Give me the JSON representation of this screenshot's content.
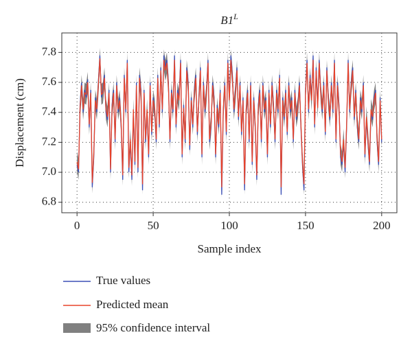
{
  "chart_data": {
    "type": "line",
    "title": "B1",
    "title_superscript": "L",
    "xlabel": "Sample index",
    "ylabel": "Displacement (cm)",
    "xlim": [
      -10,
      210
    ],
    "ylim": [
      6.73,
      7.93
    ],
    "xticks": [
      0,
      50,
      100,
      150,
      200
    ],
    "yticks": [
      {
        "value": 6.8,
        "label": "6.8"
      },
      {
        "value": 7.0,
        "label": "7.0"
      },
      {
        "value": 7.2,
        "label": "7.2"
      },
      {
        "value": 7.4,
        "label": "7.4"
      },
      {
        "value": 7.6,
        "label": "7.6"
      },
      {
        "value": 7.8,
        "label": "7.8"
      }
    ],
    "grid": true,
    "legend": "bottom",
    "x": [
      0,
      1,
      2,
      3,
      4,
      5,
      6,
      7,
      8,
      9,
      10,
      11,
      12,
      13,
      14,
      15,
      16,
      17,
      18,
      19,
      20,
      21,
      22,
      23,
      24,
      25,
      26,
      27,
      28,
      29,
      30,
      31,
      32,
      33,
      34,
      35,
      36,
      37,
      38,
      39,
      40,
      41,
      42,
      43,
      44,
      45,
      46,
      47,
      48,
      49,
      50,
      51,
      52,
      53,
      54,
      55,
      56,
      57,
      58,
      59,
      60,
      61,
      62,
      63,
      64,
      65,
      66,
      67,
      68,
      69,
      70,
      71,
      72,
      73,
      74,
      75,
      76,
      77,
      78,
      79,
      80,
      81,
      82,
      83,
      84,
      85,
      86,
      87,
      88,
      89,
      90,
      91,
      92,
      93,
      94,
      95,
      96,
      97,
      98,
      99,
      100,
      101,
      102,
      103,
      104,
      105,
      106,
      107,
      108,
      109,
      110,
      111,
      112,
      113,
      114,
      115,
      116,
      117,
      118,
      119,
      120,
      121,
      122,
      123,
      124,
      125,
      126,
      127,
      128,
      129,
      130,
      131,
      132,
      133,
      134,
      135,
      136,
      137,
      138,
      139,
      140,
      141,
      142,
      143,
      144,
      145,
      146,
      147,
      148,
      149,
      150,
      151,
      152,
      153,
      154,
      155,
      156,
      157,
      158,
      159,
      160,
      161,
      162,
      163,
      164,
      165,
      166,
      167,
      168,
      169,
      170,
      171,
      172,
      173,
      174,
      175,
      176,
      177,
      178,
      179,
      180,
      181,
      182,
      183,
      184,
      185,
      186,
      187,
      188,
      189,
      190,
      191,
      192,
      193,
      194,
      195,
      196,
      197,
      198,
      199,
      200
    ],
    "confidence": {
      "name": "95% confidence interval",
      "color": "#808080",
      "halfwidth": 0.07
    },
    "series": [
      {
        "name": "True values",
        "color": "#3b4fb5",
        "values": [
          7.05,
          7.0,
          7.45,
          7.6,
          7.4,
          7.55,
          7.5,
          7.62,
          7.3,
          7.55,
          6.9,
          7.1,
          7.5,
          7.4,
          7.6,
          7.78,
          7.5,
          7.55,
          7.65,
          7.4,
          7.35,
          7.55,
          7.0,
          7.45,
          7.55,
          7.2,
          7.6,
          7.4,
          7.5,
          7.3,
          6.95,
          7.65,
          7.4,
          7.75,
          7.0,
          7.2,
          6.95,
          7.4,
          7.05,
          7.6,
          7.0,
          7.65,
          7.55,
          6.88,
          7.55,
          7.2,
          7.4,
          7.1,
          7.6,
          7.25,
          7.5,
          7.4,
          7.2,
          7.65,
          7.3,
          7.7,
          7.4,
          7.78,
          7.7,
          7.75,
          7.6,
          7.2,
          7.55,
          7.4,
          7.78,
          7.3,
          7.55,
          7.5,
          7.75,
          7.1,
          7.45,
          7.2,
          7.7,
          7.6,
          7.15,
          7.5,
          7.3,
          7.55,
          7.65,
          7.25,
          7.5,
          7.7,
          7.1,
          7.6,
          7.4,
          7.55,
          7.75,
          7.2,
          7.3,
          7.6,
          7.5,
          7.1,
          7.45,
          7.3,
          7.55,
          6.85,
          7.4,
          7.6,
          7.25,
          7.75,
          7.5,
          7.78,
          7.65,
          7.4,
          7.55,
          7.7,
          7.35,
          7.6,
          7.25,
          7.5,
          6.88,
          7.4,
          7.55,
          7.2,
          7.6,
          7.05,
          7.5,
          7.3,
          6.95,
          7.45,
          7.55,
          7.2,
          7.6,
          7.4,
          7.5,
          7.1,
          7.55,
          7.3,
          7.6,
          7.45,
          7.2,
          7.55,
          7.4,
          7.65,
          6.85,
          7.5,
          7.35,
          7.55,
          7.25,
          7.6,
          7.4,
          7.5,
          7.2,
          7.55,
          7.35,
          7.45,
          7.6,
          7.3,
          7.05,
          6.88,
          7.55,
          7.75,
          7.4,
          7.65,
          7.5,
          7.78,
          7.3,
          7.7,
          7.45,
          7.75,
          7.55,
          7.4,
          7.6,
          7.25,
          7.7,
          7.5,
          7.35,
          7.6,
          7.4,
          7.75,
          7.2,
          7.6,
          7.45,
          7.1,
          7.05,
          7.2,
          7.0,
          7.3,
          7.75,
          7.4,
          7.6,
          7.7,
          7.35,
          7.55,
          7.3,
          7.2,
          7.5,
          7.4,
          7.6,
          7.1,
          7.35,
          7.2,
          7.05,
          7.4,
          7.35,
          7.5,
          7.55,
          7.2,
          7.05,
          7.5,
          7.2
        ]
      },
      {
        "name": "Predicted mean",
        "color": "#e8432a",
        "values": [
          7.07,
          7.02,
          7.43,
          7.58,
          7.42,
          7.53,
          7.52,
          7.6,
          7.32,
          7.53,
          6.93,
          7.12,
          7.48,
          7.42,
          7.58,
          7.76,
          7.52,
          7.53,
          7.63,
          7.42,
          7.37,
          7.53,
          7.02,
          7.43,
          7.53,
          7.22,
          7.58,
          7.42,
          7.48,
          7.32,
          6.98,
          7.63,
          7.42,
          7.73,
          7.03,
          7.22,
          6.98,
          7.42,
          7.07,
          7.58,
          7.03,
          7.63,
          7.53,
          6.92,
          7.53,
          7.22,
          7.42,
          7.12,
          7.58,
          7.27,
          7.48,
          7.42,
          7.22,
          7.63,
          7.32,
          7.68,
          7.42,
          7.75,
          7.68,
          7.73,
          7.58,
          7.22,
          7.53,
          7.42,
          7.75,
          7.32,
          7.53,
          7.48,
          7.73,
          7.12,
          7.43,
          7.22,
          7.68,
          7.58,
          7.18,
          7.48,
          7.32,
          7.53,
          7.63,
          7.27,
          7.48,
          7.68,
          7.12,
          7.58,
          7.42,
          7.53,
          7.73,
          7.22,
          7.32,
          7.58,
          7.48,
          7.12,
          7.43,
          7.32,
          7.53,
          6.9,
          7.42,
          7.58,
          7.27,
          7.73,
          7.48,
          7.75,
          7.63,
          7.42,
          7.53,
          7.68,
          7.37,
          7.58,
          7.27,
          7.48,
          6.92,
          7.42,
          7.53,
          7.22,
          7.58,
          7.07,
          7.48,
          7.32,
          6.98,
          7.43,
          7.53,
          7.22,
          7.58,
          7.42,
          7.48,
          7.12,
          7.53,
          7.32,
          7.58,
          7.43,
          7.22,
          7.53,
          7.42,
          7.63,
          6.9,
          7.48,
          7.37,
          7.53,
          7.27,
          7.58,
          7.42,
          7.48,
          7.22,
          7.53,
          7.37,
          7.43,
          7.58,
          7.32,
          7.07,
          6.92,
          7.53,
          7.73,
          7.42,
          7.63,
          7.48,
          7.75,
          7.32,
          7.68,
          7.43,
          7.73,
          7.53,
          7.42,
          7.58,
          7.27,
          7.68,
          7.48,
          7.37,
          7.58,
          7.42,
          7.73,
          7.22,
          7.58,
          7.43,
          7.12,
          7.07,
          7.22,
          7.03,
          7.32,
          7.73,
          7.42,
          7.58,
          7.68,
          7.37,
          7.53,
          7.32,
          7.22,
          7.48,
          7.42,
          7.58,
          7.12,
          7.37,
          7.22,
          7.07,
          7.42,
          7.37,
          7.48,
          7.53,
          7.22,
          7.07,
          7.48,
          7.22
        ]
      }
    ]
  }
}
